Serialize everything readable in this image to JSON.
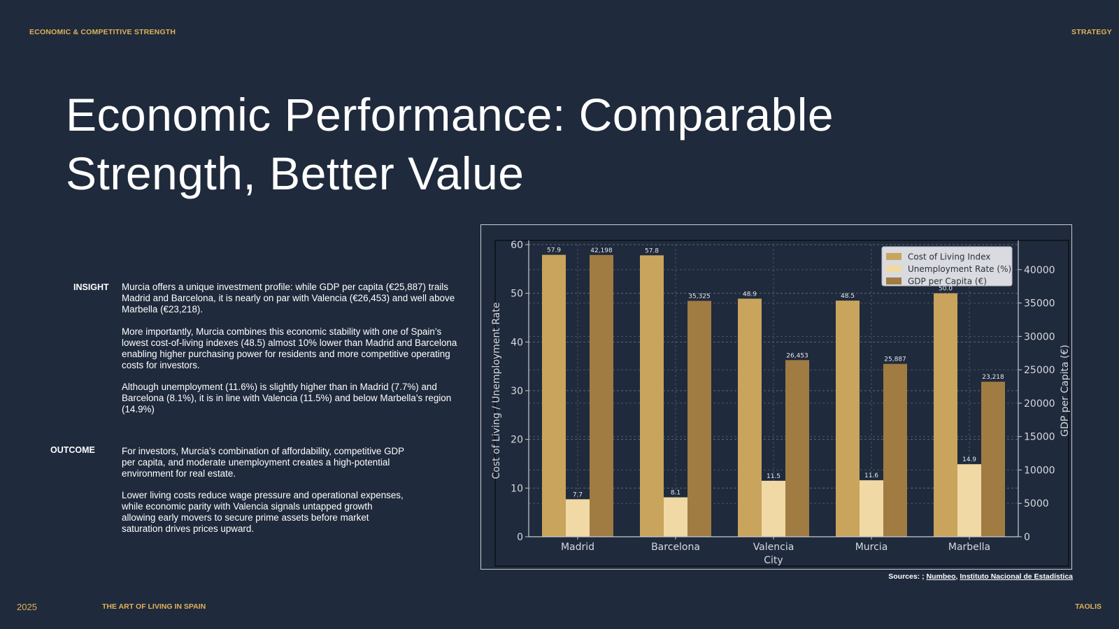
{
  "header": {
    "section": "ECONOMIC & COMPETITIVE STRENGTH",
    "category": "STRATEGY"
  },
  "title": {
    "line1": "Economic Performance: Comparable",
    "line2": "Strength, Better Value"
  },
  "insight": {
    "label": "INSIGHT",
    "paragraphs": [
      "Murcia offers a unique investment profile: while GDP per capita (€25,887) trails Madrid and Barcelona, it is nearly on par with Valencia (€26,453) and well above Marbella (€23,218).",
      "More importantly, Murcia combines this economic stability with one of Spain’s lowest cost-of-living indexes (48.5) almost 10% lower than Madrid and Barcelona enabling higher purchasing power for residents and more competitive operating costs for investors.",
      "Although unemployment (11.6%) is slightly higher than in Madrid (7.7%) and Barcelona (8.1%), it is in line with Valencia (11.5%) and below Marbella’s region (14.9%)"
    ]
  },
  "outcome": {
    "label": "OUTCOME",
    "paragraphs": [
      "For investors, Murcia’s combination of affordability, competitive GDP per capita, and moderate unemployment creates a high-potential environment for real estate.",
      "Lower living costs reduce wage pressure and operational expenses, while economic parity with Valencia signals untapped growth  allowing early movers to secure prime assets before market saturation drives prices upward."
    ]
  },
  "sources": {
    "prefix": "Sources: ;",
    "link1": "Numbeo",
    "separator": ",",
    "link2": "Instituto Nacional de Estadística"
  },
  "footer": {
    "year": "2025",
    "tagline": "THE ART OF LIVING IN SPAIN",
    "brand": "TAOLIS"
  },
  "colors": {
    "background": "#1f2a3c",
    "accent": "#e0b25a",
    "cost_of_living": "#c9a45c",
    "unemployment": "#f0d9a5",
    "gdp": "#a07c42"
  },
  "chart_data": {
    "type": "bar",
    "categories": [
      "Madrid",
      "Barcelona",
      "Valencia",
      "Murcia",
      "Marbella"
    ],
    "xlabel": "City",
    "ylabel": "Cost of Living / Unemployment Rate",
    "ylabel_right": "GDP per Capita (€)",
    "ylim": [
      0,
      60
    ],
    "ylim_right": [
      0,
      43750
    ],
    "yticks": [
      0,
      10,
      20,
      30,
      40,
      50,
      60
    ],
    "yticks_right": [
      0,
      5000,
      10000,
      15000,
      20000,
      25000,
      30000,
      35000,
      40000
    ],
    "grid": true,
    "legend_position": "top-right",
    "series": [
      {
        "name": "Cost of Living Index",
        "axis": "left",
        "values": [
          57.9,
          57.8,
          48.9,
          48.5,
          50.0
        ],
        "labels": [
          "57.9",
          "57.8",
          "48.9",
          "48.5",
          "50.0"
        ]
      },
      {
        "name": "Unemployment Rate (%)",
        "axis": "left",
        "values": [
          7.7,
          8.1,
          11.5,
          11.6,
          14.9
        ],
        "labels": [
          "7.7",
          "8.1",
          "11.5",
          "11.6",
          "14.9"
        ]
      },
      {
        "name": "GDP per Capita (€)",
        "axis": "right",
        "values": [
          42198,
          35325,
          26453,
          25887,
          23218
        ],
        "labels": [
          "42,198",
          "35,325",
          "26,453",
          "25,887",
          "23,218"
        ]
      }
    ]
  }
}
